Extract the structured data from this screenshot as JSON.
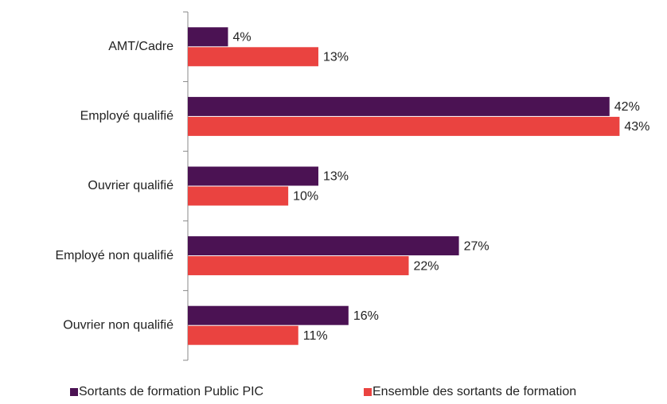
{
  "chart_data": {
    "type": "bar",
    "orientation": "horizontal",
    "categories": [
      "AMT/Cadre",
      "Employé qualifié",
      "Ouvrier qualifié",
      "Employé non qualifié",
      "Ouvrier non qualifié"
    ],
    "series": [
      {
        "name": "Sortants de formation Public PIC",
        "color": "#4b1253",
        "values": [
          4,
          42,
          13,
          27,
          16
        ],
        "value_labels": [
          "4%",
          "42%",
          "13%",
          "27%",
          "16%"
        ]
      },
      {
        "name": "Ensemble des sortants de formation",
        "color": "#ea4340",
        "values": [
          13,
          43,
          10,
          22,
          11
        ],
        "value_labels": [
          "13%",
          "43%",
          "10%",
          "22%",
          "11%"
        ]
      }
    ],
    "xlim": [
      0,
      44
    ],
    "legend": "bottom"
  }
}
